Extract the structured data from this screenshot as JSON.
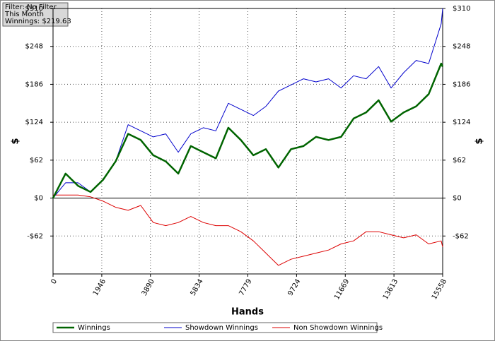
{
  "chart_data": {
    "type": "line",
    "annotations": [
      "Filter: No Filter",
      "This Month",
      "Winnings: $219.63"
    ],
    "x_label": "Hands",
    "y_label": "$",
    "y2_label": "$",
    "x": [
      0,
      500,
      1000,
      1500,
      2000,
      2500,
      3000,
      3500,
      4000,
      4500,
      5000,
      5500,
      6000,
      6500,
      7000,
      7500,
      8000,
      8500,
      9000,
      9500,
      10000,
      10500,
      11000,
      11500,
      12000,
      12500,
      13000,
      13500,
      14000,
      14500,
      15000,
      15500,
      15558
    ],
    "series": [
      {
        "name": "Winnings",
        "color": "#006400",
        "values": [
          0,
          40,
          20,
          10,
          30,
          60,
          105,
          95,
          70,
          60,
          40,
          85,
          75,
          65,
          115,
          95,
          70,
          80,
          50,
          80,
          85,
          100,
          95,
          100,
          130,
          140,
          160,
          125,
          140,
          150,
          170,
          220,
          215
        ]
      },
      {
        "name": "Showdown Winnings",
        "color": "#0000cc",
        "values": [
          0,
          25,
          25,
          10,
          30,
          60,
          120,
          110,
          100,
          105,
          75,
          105,
          115,
          110,
          155,
          145,
          135,
          150,
          175,
          185,
          195,
          190,
          195,
          180,
          200,
          195,
          215,
          180,
          205,
          225,
          220,
          285,
          310
        ]
      },
      {
        "name": "Non Showdown Winnings",
        "color": "#dd0000",
        "values": [
          5,
          5,
          5,
          2,
          -5,
          -15,
          -20,
          -12,
          -40,
          -45,
          -40,
          -30,
          -40,
          -45,
          -45,
          -55,
          -70,
          -90,
          -110,
          -100,
          -95,
          -90,
          -85,
          -75,
          -70,
          -55,
          -55,
          -60,
          -65,
          -60,
          -75,
          -70,
          -80
        ]
      }
    ],
    "xlim": [
      0,
      15558
    ],
    "xticks": [
      0,
      1946,
      3890,
      5834,
      7779,
      9724,
      11669,
      13613,
      15558
    ],
    "ylim": [
      -124,
      310
    ],
    "yticks": [
      {
        "value": -62,
        "label": "-$62"
      },
      {
        "value": 0,
        "label": "$0"
      },
      {
        "value": 62,
        "label": "$62"
      },
      {
        "value": 124,
        "label": "$124"
      },
      {
        "value": 186,
        "label": "$186"
      },
      {
        "value": 248,
        "label": "$248"
      },
      {
        "value": 310,
        "label": "$310"
      }
    ],
    "grid": true
  }
}
